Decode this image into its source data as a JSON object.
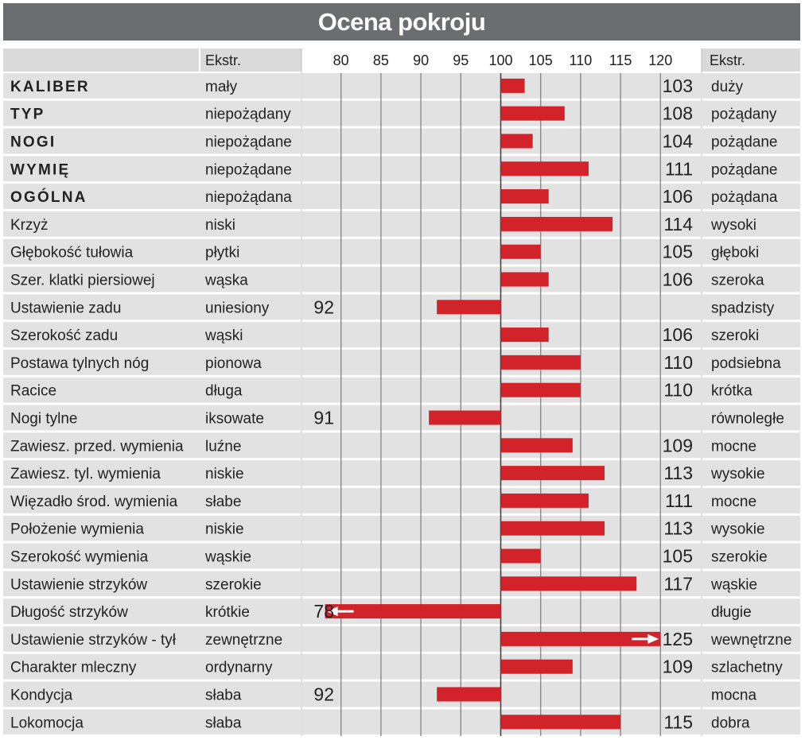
{
  "title": "Ocena pokroju",
  "colors": {
    "title_bg": "#6b6e71",
    "row_shade": "#e2e2e2",
    "header_shade": "#dadada",
    "bar": "#d2232a",
    "gridline": "#8a8a8a",
    "text": "#222222"
  },
  "chart_data": {
    "type": "bar",
    "orientation": "horizontal",
    "baseline": 100,
    "xlim": [
      75,
      122
    ],
    "ticks": [
      80,
      85,
      90,
      95,
      100,
      105,
      110,
      115,
      120
    ],
    "grid": true,
    "header": {
      "left_extreme": "Ekstr.",
      "right_extreme": "Ekstr."
    },
    "rows": [
      {
        "trait": "KALIBER",
        "bold": true,
        "low": "mały",
        "value": 103,
        "label": "103",
        "high": "duży"
      },
      {
        "trait": "TYP",
        "bold": true,
        "low": "niepożądany",
        "value": 108,
        "label": "108",
        "high": "pożądany"
      },
      {
        "trait": "NOGI",
        "bold": true,
        "low": "niepożądane",
        "value": 104,
        "label": "104",
        "high": "pożądane"
      },
      {
        "trait": "WYMIĘ",
        "bold": true,
        "low": "niepożądane",
        "value": 111,
        "label": "111",
        "high": "pożądane"
      },
      {
        "trait": "OGÓLNA",
        "bold": true,
        "low": "niepożądana",
        "value": 106,
        "label": "106",
        "high": "pożądana"
      },
      {
        "trait": "Krzyż",
        "bold": false,
        "low": "niski",
        "value": 114,
        "label": "114",
        "high": "wysoki"
      },
      {
        "trait": "Głębokość tułowia",
        "bold": false,
        "low": "płytki",
        "value": 105,
        "label": "105",
        "high": "głęboki"
      },
      {
        "trait": "Szer. klatki piersiowej",
        "bold": false,
        "low": "wąska",
        "value": 106,
        "label": "106",
        "high": "szeroka"
      },
      {
        "trait": "Ustawienie zadu",
        "bold": false,
        "low": "uniesiony",
        "value": 92,
        "label": "92",
        "high": "spadzisty"
      },
      {
        "trait": "Szerokość zadu",
        "bold": false,
        "low": "wąski",
        "value": 106,
        "label": "106",
        "high": "szeroki"
      },
      {
        "trait": "Postawa tylnych nóg",
        "bold": false,
        "low": "pionowa",
        "value": 110,
        "label": "110",
        "high": "podsiebna"
      },
      {
        "trait": "Racice",
        "bold": false,
        "low": "długa",
        "value": 110,
        "label": "110",
        "high": "krótka"
      },
      {
        "trait": "Nogi tylne",
        "bold": false,
        "low": "iksowate",
        "value": 91,
        "label": "91",
        "high": "równoległe"
      },
      {
        "trait": "Zawiesz. przed. wymienia",
        "bold": false,
        "low": "luźne",
        "value": 109,
        "label": "109",
        "high": "mocne"
      },
      {
        "trait": "Zawiesz. tyl. wymienia",
        "bold": false,
        "low": "niskie",
        "value": 113,
        "label": "113",
        "high": "wysokie"
      },
      {
        "trait": "Więzadło środ. wymienia",
        "bold": false,
        "low": "słabe",
        "value": 111,
        "label": "111",
        "high": "mocne"
      },
      {
        "trait": "Położenie wymienia",
        "bold": false,
        "low": "niskie",
        "value": 113,
        "label": "113",
        "high": "wysokie"
      },
      {
        "trait": "Szerokość wymienia",
        "bold": false,
        "low": "wąskie",
        "value": 105,
        "label": "105",
        "high": "szerokie"
      },
      {
        "trait": "Ustawienie strzyków",
        "bold": false,
        "low": "szerokie",
        "value": 117,
        "label": "117",
        "high": "wąskie"
      },
      {
        "trait": "Długość strzyków",
        "bold": false,
        "low": "krótkie",
        "value": 78,
        "label": "78",
        "high": "długie",
        "off_scale": true
      },
      {
        "trait": "Ustawienie strzyków - tył",
        "bold": false,
        "low": "zewnętrzne",
        "value": 125,
        "label": "125",
        "high": "wewnętrzne",
        "off_scale": true
      },
      {
        "trait": "Charakter mleczny",
        "bold": false,
        "low": "ordynarny",
        "value": 109,
        "label": "109",
        "high": "szlachetny"
      },
      {
        "trait": "Kondycja",
        "bold": false,
        "low": "słaba",
        "value": 92,
        "label": "92",
        "high": "mocna"
      },
      {
        "trait": "Lokomocja",
        "bold": false,
        "low": "słaba",
        "value": 115,
        "label": "115",
        "high": "dobra"
      }
    ]
  }
}
